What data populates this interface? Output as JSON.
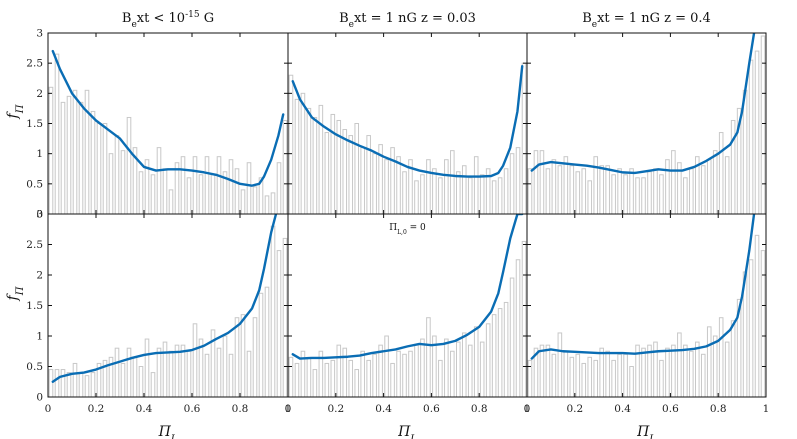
{
  "colors": {
    "curve": "#0a6db4",
    "bar_edge": "#c8c8c8",
    "axis": "#111111"
  },
  "ylabel": "f_Π",
  "xlabel": "Π_L",
  "titles": [
    "B_ext < 10^{-15} G",
    "B_ext = 1 nG      z = 0.03",
    "B_ext = 1 nG      z = 0.4"
  ],
  "annotation": "Π_{L,0} = 0",
  "y_ticks": [
    "0",
    "0.5",
    "1",
    "1.5",
    "2",
    "2.5",
    "3"
  ],
  "x_ticks": [
    "0",
    "0.2",
    "0.4",
    "0.6",
    "0.8",
    "1"
  ],
  "chart_data": {
    "type": "bar",
    "layout": "2x3 grid",
    "xlim": [
      0,
      1
    ],
    "ylim": [
      0,
      3
    ],
    "bins": 40,
    "bin_width": 0.025,
    "panels": [
      {
        "row": 0,
        "col": 0,
        "histogram": [
          2.1,
          2.65,
          1.85,
          1.95,
          2.05,
          1.85,
          2.05,
          1.7,
          1.5,
          1.5,
          1.0,
          1.3,
          1.05,
          1.6,
          1.1,
          0.7,
          0.9,
          0.65,
          1.1,
          0.75,
          0.4,
          0.85,
          0.95,
          0.6,
          0.95,
          0.65,
          0.95,
          0.65,
          0.95,
          0.7,
          0.9,
          0.75,
          0.4,
          0.85,
          0.45,
          0.6,
          0.3,
          0.35,
          0.85,
          1.55
        ],
        "curve_x": [
          0.02,
          0.05,
          0.1,
          0.15,
          0.2,
          0.25,
          0.3,
          0.35,
          0.4,
          0.45,
          0.5,
          0.55,
          0.6,
          0.65,
          0.7,
          0.75,
          0.8,
          0.85,
          0.88,
          0.9,
          0.93,
          0.96,
          0.98
        ],
        "curve_y": [
          2.7,
          2.4,
          2.0,
          1.75,
          1.55,
          1.4,
          1.25,
          1.0,
          0.78,
          0.72,
          0.74,
          0.74,
          0.72,
          0.69,
          0.65,
          0.58,
          0.5,
          0.47,
          0.5,
          0.62,
          0.9,
          1.3,
          1.65
        ]
      },
      {
        "row": 0,
        "col": 1,
        "histogram": [
          2.3,
          1.9,
          2.0,
          1.75,
          1.6,
          1.8,
          1.35,
          1.65,
          1.55,
          1.4,
          1.3,
          1.5,
          1.1,
          1.3,
          1.0,
          1.15,
          0.9,
          1.1,
          0.95,
          0.7,
          0.9,
          0.55,
          0.65,
          0.9,
          0.75,
          0.6,
          0.9,
          1.05,
          0.7,
          0.8,
          0.6,
          0.95,
          0.65,
          0.75,
          0.55,
          0.6,
          0.75,
          1.0,
          1.1,
          2.5
        ],
        "curve_x": [
          0.02,
          0.05,
          0.1,
          0.15,
          0.2,
          0.25,
          0.3,
          0.35,
          0.4,
          0.45,
          0.5,
          0.55,
          0.6,
          0.65,
          0.7,
          0.75,
          0.8,
          0.85,
          0.88,
          0.9,
          0.93,
          0.96,
          0.98
        ],
        "curve_y": [
          2.2,
          1.9,
          1.6,
          1.45,
          1.32,
          1.22,
          1.13,
          1.05,
          0.95,
          0.87,
          0.78,
          0.72,
          0.68,
          0.65,
          0.63,
          0.62,
          0.62,
          0.63,
          0.68,
          0.8,
          1.1,
          1.7,
          2.45
        ]
      },
      {
        "row": 0,
        "col": 2,
        "histogram": [
          0.75,
          1.05,
          1.05,
          0.75,
          0.9,
          0.8,
          0.95,
          0.8,
          0.7,
          0.75,
          0.55,
          0.95,
          0.8,
          0.8,
          0.65,
          0.75,
          0.65,
          0.75,
          0.6,
          0.6,
          0.7,
          0.75,
          0.65,
          0.9,
          1.05,
          0.85,
          0.6,
          0.75,
          0.95,
          0.8,
          0.9,
          1.05,
          1.35,
          0.95,
          1.55,
          1.75,
          2.05,
          2.55,
          2.7,
          2.95
        ],
        "curve_x": [
          0.02,
          0.05,
          0.1,
          0.15,
          0.2,
          0.25,
          0.3,
          0.35,
          0.4,
          0.45,
          0.5,
          0.55,
          0.6,
          0.65,
          0.7,
          0.75,
          0.8,
          0.85,
          0.88,
          0.9,
          0.93,
          0.95
        ],
        "curve_y": [
          0.72,
          0.82,
          0.86,
          0.84,
          0.82,
          0.8,
          0.77,
          0.73,
          0.69,
          0.68,
          0.71,
          0.74,
          0.72,
          0.72,
          0.78,
          0.88,
          1.0,
          1.15,
          1.35,
          1.7,
          2.5,
          3.0
        ]
      },
      {
        "row": 1,
        "col": 0,
        "histogram": [
          0.45,
          0.45,
          0.45,
          0.4,
          0.55,
          0.4,
          0.35,
          0.4,
          0.55,
          0.6,
          0.65,
          0.8,
          0.55,
          0.8,
          0.65,
          0.5,
          0.95,
          0.4,
          0.8,
          0.9,
          0.75,
          0.85,
          0.85,
          0.75,
          1.2,
          0.95,
          0.7,
          1.1,
          0.8,
          1.0,
          0.7,
          1.3,
          1.35,
          0.75,
          1.3,
          1.7,
          1.8,
          2.8,
          2.4,
          2.6
        ],
        "curve_x": [
          0.02,
          0.05,
          0.1,
          0.15,
          0.2,
          0.25,
          0.3,
          0.35,
          0.4,
          0.45,
          0.5,
          0.55,
          0.6,
          0.65,
          0.7,
          0.75,
          0.8,
          0.85,
          0.88,
          0.9,
          0.93,
          0.95
        ],
        "curve_y": [
          0.25,
          0.33,
          0.38,
          0.4,
          0.45,
          0.52,
          0.58,
          0.64,
          0.69,
          0.72,
          0.73,
          0.74,
          0.77,
          0.84,
          0.95,
          1.05,
          1.2,
          1.45,
          1.75,
          2.1,
          2.7,
          3.0
        ]
      },
      {
        "row": 1,
        "col": 1,
        "histogram": [
          0.65,
          0.55,
          0.75,
          0.65,
          0.45,
          0.75,
          0.55,
          0.6,
          0.85,
          0.8,
          0.6,
          0.45,
          0.75,
          0.6,
          0.7,
          0.85,
          1.0,
          0.55,
          0.75,
          0.7,
          0.75,
          0.85,
          0.95,
          1.3,
          1.0,
          0.6,
          0.95,
          0.75,
          0.9,
          1.05,
          0.85,
          1.15,
          0.9,
          1.2,
          1.35,
          1.45,
          1.55,
          1.95,
          2.25,
          2.55
        ],
        "curve_x": [
          0.02,
          0.05,
          0.1,
          0.15,
          0.2,
          0.25,
          0.3,
          0.35,
          0.4,
          0.45,
          0.5,
          0.55,
          0.6,
          0.65,
          0.7,
          0.75,
          0.8,
          0.85,
          0.88,
          0.9,
          0.93,
          0.96,
          0.98
        ],
        "curve_y": [
          0.7,
          0.63,
          0.64,
          0.64,
          0.65,
          0.66,
          0.68,
          0.72,
          0.75,
          0.78,
          0.83,
          0.87,
          0.85,
          0.87,
          0.92,
          1.02,
          1.15,
          1.4,
          1.7,
          2.05,
          2.6,
          3.0,
          3.0
        ]
      },
      {
        "row": 1,
        "col": 2,
        "histogram": [
          0.6,
          0.8,
          0.85,
          0.85,
          0.7,
          1.05,
          0.75,
          0.65,
          0.7,
          0.55,
          0.65,
          0.6,
          0.8,
          0.75,
          0.6,
          0.7,
          0.7,
          0.5,
          0.85,
          0.8,
          0.85,
          0.9,
          0.6,
          0.8,
          0.85,
          1.05,
          0.85,
          0.75,
          0.9,
          0.7,
          1.15,
          1.0,
          1.3,
          0.9,
          1.25,
          1.6,
          2.05,
          2.25,
          2.65,
          2.4
        ],
        "curve_x": [
          0.02,
          0.05,
          0.1,
          0.15,
          0.2,
          0.25,
          0.3,
          0.35,
          0.4,
          0.45,
          0.5,
          0.55,
          0.6,
          0.65,
          0.7,
          0.75,
          0.8,
          0.85,
          0.88,
          0.9,
          0.93,
          0.95
        ],
        "curve_y": [
          0.63,
          0.75,
          0.78,
          0.75,
          0.74,
          0.73,
          0.72,
          0.72,
          0.72,
          0.71,
          0.73,
          0.75,
          0.76,
          0.77,
          0.79,
          0.83,
          0.92,
          1.1,
          1.3,
          1.65,
          2.4,
          3.0
        ]
      }
    ]
  }
}
